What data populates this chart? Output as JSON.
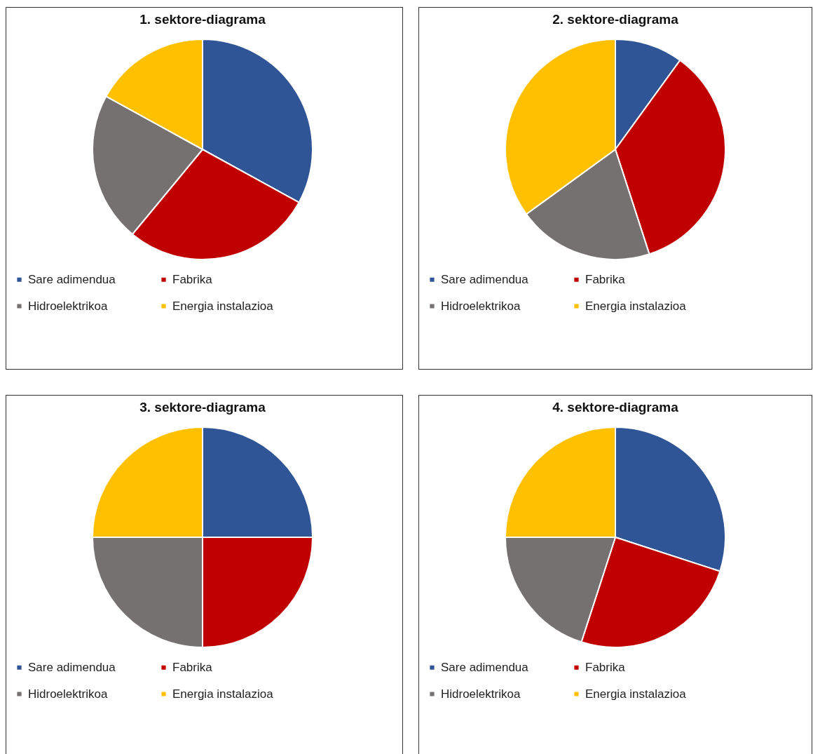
{
  "chart_data": [
    {
      "type": "pie",
      "title": "1. sektore-diagrama",
      "categories": [
        "Sare adimendua",
        "Fabrika",
        "Hidroelektrikoa",
        "Energia instalazioa"
      ],
      "values": [
        33,
        28,
        22,
        17
      ],
      "colors": [
        "#2f5597",
        "#c00000",
        "#767171",
        "#ffc000"
      ],
      "legend": "bottom"
    },
    {
      "type": "pie",
      "title": "2. sektore-diagrama",
      "categories": [
        "Sare adimendua",
        "Fabrika",
        "Hidroelektrikoa",
        "Energia instalazioa"
      ],
      "values": [
        10,
        35,
        20,
        35
      ],
      "colors": [
        "#2f5597",
        "#c00000",
        "#767171",
        "#ffc000"
      ],
      "legend": "bottom"
    },
    {
      "type": "pie",
      "title": "3. sektore-diagrama",
      "categories": [
        "Sare adimendua",
        "Fabrika",
        "Hidroelektrikoa",
        "Energia instalazioa"
      ],
      "values": [
        25,
        25,
        25,
        25
      ],
      "colors": [
        "#2f5597",
        "#c00000",
        "#767171",
        "#ffc000"
      ],
      "legend": "bottom"
    },
    {
      "type": "pie",
      "title": "4. sektore-diagrama",
      "categories": [
        "Sare adimendua",
        "Fabrika",
        "Hidroelektrikoa",
        "Energia instalazioa"
      ],
      "values": [
        30,
        25,
        20,
        25
      ],
      "colors": [
        "#2f5597",
        "#c00000",
        "#767171",
        "#ffc000"
      ],
      "legend": "bottom"
    }
  ]
}
